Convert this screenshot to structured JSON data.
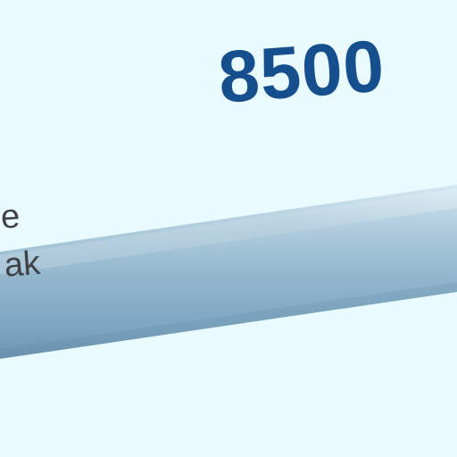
{
  "metric": {
    "value": "8500"
  },
  "label": {
    "lines": [
      "e",
      "ak"
    ]
  },
  "colors": {
    "background": "#e9fbfe",
    "number": "#164f8e",
    "label": "#404247",
    "tube_light": "#c7dde9",
    "tube_mid": "#97b9ce",
    "tube_dark": "#6e98b5"
  }
}
